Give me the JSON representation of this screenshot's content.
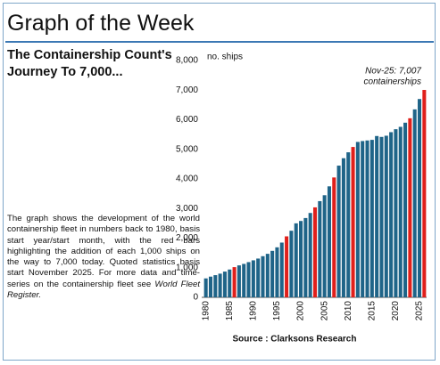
{
  "header": {
    "title": "Graph of the Week"
  },
  "heading": "The Containership Count's Journey To 7,000...",
  "body": {
    "text": "The graph shows the development of the world containership fleet in numbers back to 1980, basis start year/start month, with the red bars highlighting the addition of each 1,000 ships on the way to 7,000 today. Quoted statistics basis start November 2025. For more data and time-series on the containership fleet see ",
    "emphasis": "World Fleet Register."
  },
  "chart_data": {
    "type": "bar",
    "ylabel": "no. ships",
    "annotation": [
      "Nov-25: 7,007",
      "containerships"
    ],
    "source": "Source : Clarksons Research",
    "categories": [
      "1980",
      null,
      null,
      null,
      null,
      "1985",
      null,
      null,
      null,
      null,
      "1990",
      null,
      null,
      null,
      null,
      "1995",
      null,
      null,
      null,
      null,
      "2000",
      null,
      null,
      null,
      null,
      "2005",
      null,
      null,
      null,
      null,
      "2010",
      null,
      null,
      null,
      null,
      "2015",
      null,
      null,
      null,
      null,
      "2020",
      null,
      null,
      null,
      null,
      "2025",
      null
    ],
    "values": [
      640,
      700,
      750,
      800,
      870,
      940,
      1020,
      1080,
      1130,
      1190,
      1250,
      1310,
      1390,
      1470,
      1570,
      1690,
      1850,
      2060,
      2250,
      2500,
      2580,
      2680,
      2850,
      3040,
      3250,
      3450,
      3750,
      4050,
      4450,
      4700,
      4900,
      5080,
      5250,
      5280,
      5300,
      5320,
      5450,
      5420,
      5460,
      5580,
      5680,
      5760,
      5900,
      6050,
      6350,
      6700,
      7007
    ],
    "colors": [
      "#1f6488",
      "#1f6488",
      "#1f6488",
      "#1f6488",
      "#1f6488",
      "#1f6488",
      "#e0201b",
      "#1f6488",
      "#1f6488",
      "#1f6488",
      "#1f6488",
      "#1f6488",
      "#1f6488",
      "#1f6488",
      "#1f6488",
      "#1f6488",
      "#1f6488",
      "#e0201b",
      "#1f6488",
      "#1f6488",
      "#1f6488",
      "#1f6488",
      "#1f6488",
      "#e0201b",
      "#1f6488",
      "#1f6488",
      "#1f6488",
      "#e0201b",
      "#1f6488",
      "#1f6488",
      "#1f6488",
      "#e0201b",
      "#1f6488",
      "#1f6488",
      "#1f6488",
      "#1f6488",
      "#1f6488",
      "#1f6488",
      "#1f6488",
      "#1f6488",
      "#1f6488",
      "#1f6488",
      "#1f6488",
      "#e0201b",
      "#1f6488",
      "#1f6488",
      "#e0201b"
    ],
    "ylim": [
      0,
      8000
    ],
    "yticks": [
      0,
      {
        "value": 1000,
        "label": "1,000"
      },
      {
        "value": 2000,
        "label": "2,000"
      },
      {
        "value": 3000,
        "label": "3,000"
      },
      {
        "value": 4000,
        "label": "4,000"
      },
      {
        "value": 5000,
        "label": "5,000"
      },
      {
        "value": 6000,
        "label": "6,000"
      },
      {
        "value": 7000,
        "label": "7,000"
      },
      {
        "value": 8000,
        "label": "8,000"
      }
    ],
    "grid": false
  }
}
